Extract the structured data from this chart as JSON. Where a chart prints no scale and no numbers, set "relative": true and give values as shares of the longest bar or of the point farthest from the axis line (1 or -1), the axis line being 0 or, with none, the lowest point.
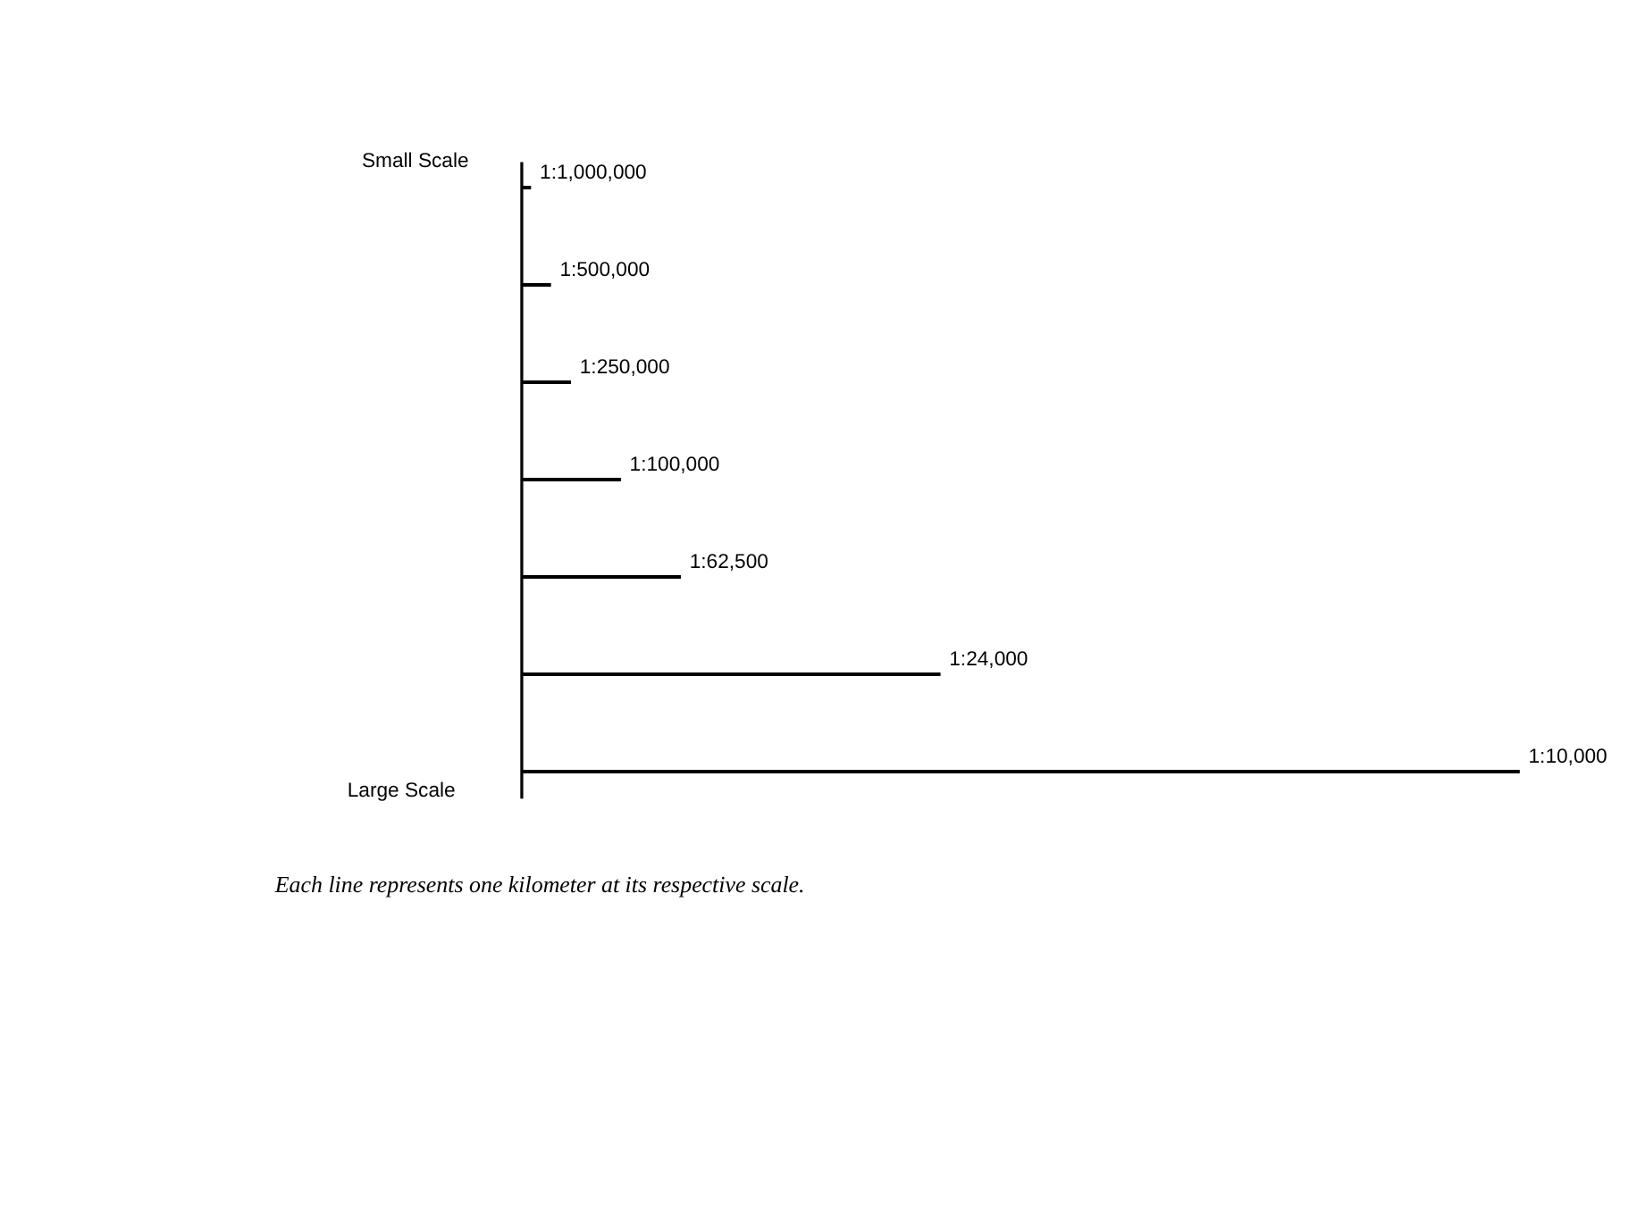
{
  "chart_data": {
    "type": "bar",
    "orientation": "horizontal",
    "relative": true,
    "categories": [
      "1:1,000,000",
      "1:500,000",
      "1:250,000",
      "1:100,000",
      "1:62,500",
      "1:24,000",
      "1:10,000"
    ],
    "values": [
      0.01,
      0.03,
      0.05,
      0.1,
      0.16,
      0.42,
      1
    ],
    "color": "#000000",
    "tick_labels": false,
    "annotations": [
      "Small Scale",
      "Large Scale",
      "Each line represents one kilometer at its respective scale."
    ]
  }
}
